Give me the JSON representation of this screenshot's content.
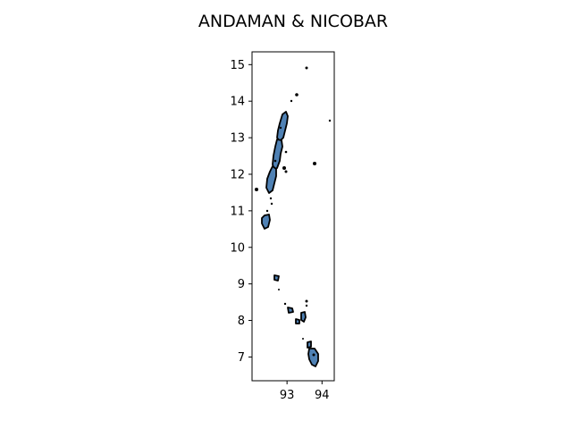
{
  "chart_data": {
    "type": "map",
    "title": "ANDAMAN & NICOBAR",
    "xlim": [
      92.0,
      94.35
    ],
    "ylim": [
      6.35,
      15.35
    ],
    "x_ticks": [
      93,
      94
    ],
    "y_ticks": [
      7,
      8,
      9,
      10,
      11,
      12,
      13,
      14,
      15
    ],
    "fill_color": "#4f81b4",
    "edge_color": "#000000",
    "grid": false
  }
}
